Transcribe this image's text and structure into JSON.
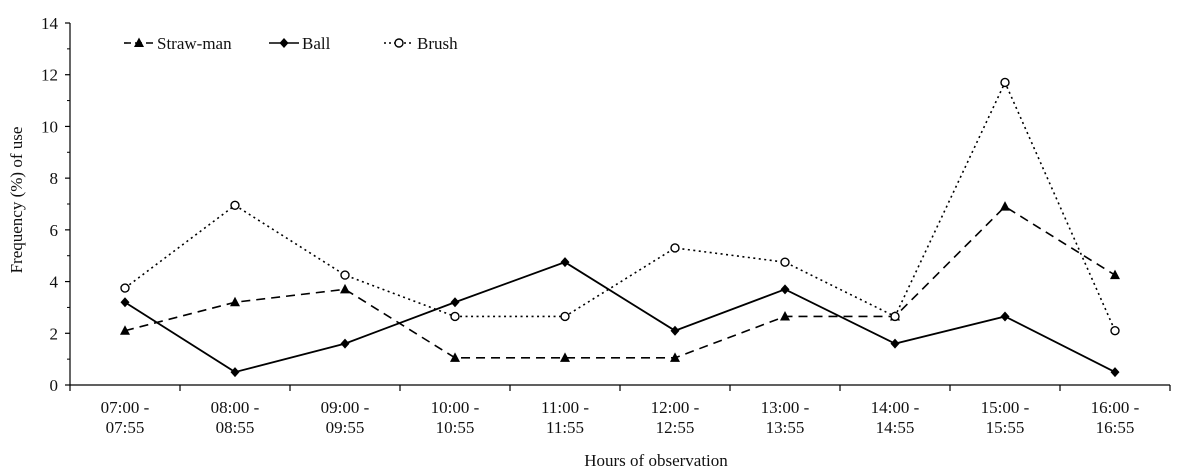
{
  "chart_data": {
    "type": "line",
    "title": "",
    "xlabel": "Hours of observation",
    "ylabel": "Frequency (%) of use",
    "categories": [
      [
        "07:00 -",
        "07:55"
      ],
      [
        "08:00 -",
        "08:55"
      ],
      [
        "09:00 -",
        "09:55"
      ],
      [
        "10:00 -",
        "10:55"
      ],
      [
        "11:00 -",
        "11:55"
      ],
      [
        "12:00 -",
        "12:55"
      ],
      [
        "13:00 -",
        "13:55"
      ],
      [
        "14:00 -",
        "14:55"
      ],
      [
        "15:00 -",
        "15:55"
      ],
      [
        "16:00 -",
        "16:55"
      ]
    ],
    "ylim": [
      0,
      14
    ],
    "yticks": [
      "0",
      "2",
      "4",
      "6",
      "8",
      "10",
      "12",
      "14"
    ],
    "grid": false,
    "legend_position": "top-left",
    "series": [
      {
        "name": "Straw-man",
        "values": [
          2.1,
          3.2,
          3.7,
          1.05,
          1.05,
          1.05,
          2.65,
          2.65,
          6.9,
          4.25
        ],
        "style": "dashed",
        "marker": "triangle",
        "color": "#000000"
      },
      {
        "name": "Ball",
        "values": [
          3.2,
          0.5,
          1.6,
          3.2,
          4.75,
          2.1,
          3.7,
          1.6,
          2.65,
          0.5
        ],
        "style": "solid",
        "marker": "diamond",
        "color": "#000000"
      },
      {
        "name": "Brush",
        "values": [
          3.75,
          6.95,
          4.25,
          2.65,
          2.65,
          5.3,
          4.75,
          2.65,
          11.7,
          2.1
        ],
        "style": "dotted",
        "marker": "circle",
        "color": "#000000"
      }
    ]
  }
}
